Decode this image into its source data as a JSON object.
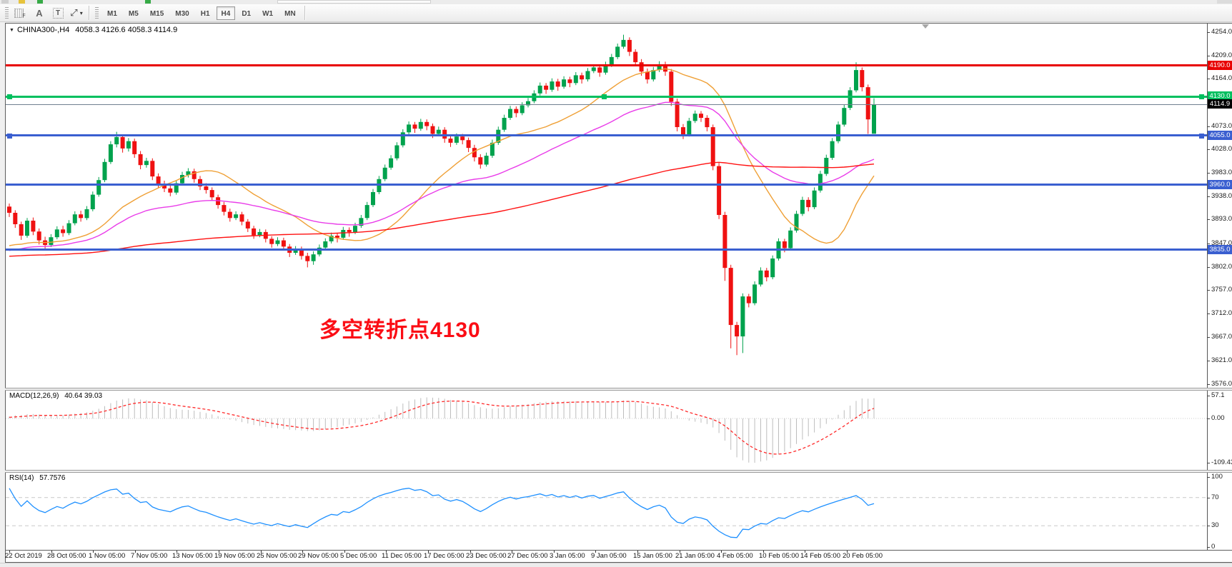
{
  "toolbar": {
    "icons": [
      {
        "name": "snap-grid-icon",
        "label": "F"
      },
      {
        "name": "text-label-icon",
        "label": "A"
      },
      {
        "name": "text-box-icon",
        "label": "T"
      },
      {
        "name": "draw-arrows-icon",
        "label": "⤢"
      },
      {
        "name": "dropdown-caret-icon",
        "label": "▾"
      }
    ],
    "timeframes": [
      {
        "label": "M1"
      },
      {
        "label": "M5"
      },
      {
        "label": "M15"
      },
      {
        "label": "M30"
      },
      {
        "label": "H1"
      },
      {
        "label": "H4"
      },
      {
        "label": "D1"
      },
      {
        "label": "W1"
      },
      {
        "label": "MN"
      }
    ],
    "active_timeframe": "H4"
  },
  "chart_header": {
    "collapse_icon": "▼",
    "symbol_period": "CHINA300-,H4",
    "ohlc": "4058.3 4126.6 4058.3 4114.9"
  },
  "annotation": {
    "text": "多空转折点4130",
    "color": "#fb0d15"
  },
  "price_axis": {
    "ticks": [
      {
        "label": "4254.0",
        "price": 4254
      },
      {
        "label": "4209.0",
        "price": 4209
      },
      {
        "label": "4164.0",
        "price": 4164
      },
      {
        "label": "4073.0",
        "price": 4073
      },
      {
        "label": "4028.0",
        "price": 4028
      },
      {
        "label": "3983.0",
        "price": 3983
      },
      {
        "label": "3938.0",
        "price": 3938
      },
      {
        "label": "3893.0",
        "price": 3893
      },
      {
        "label": "3847.0",
        "price": 3847
      },
      {
        "label": "3802.0",
        "price": 3802
      },
      {
        "label": "3757.0",
        "price": 3757
      },
      {
        "label": "3712.0",
        "price": 3712
      },
      {
        "label": "3667.0",
        "price": 3667
      },
      {
        "label": "3621.0",
        "price": 3621
      },
      {
        "label": "3576.0",
        "price": 3576
      }
    ],
    "badges": [
      {
        "label": "4190.0",
        "price": 4190,
        "bg": "#e80000"
      },
      {
        "label": "4130.0",
        "price": 4130,
        "bg": "#00bf5f"
      },
      {
        "label": "4114.9",
        "price": 4114.9,
        "bg": "#000000"
      },
      {
        "label": "4055.0",
        "price": 4055,
        "bg": "#3a5fd0"
      },
      {
        "label": "3960.0",
        "price": 3960,
        "bg": "#3a5fd0"
      },
      {
        "label": "3835.0",
        "price": 3835,
        "bg": "#3a5fd0"
      }
    ]
  },
  "hlines": [
    {
      "price": 4190,
      "color": "#e80000",
      "width": 3,
      "handles": []
    },
    {
      "price": 4130,
      "color": "#00bf5f",
      "width": 3,
      "handles": [
        "left",
        "mid",
        "right"
      ]
    },
    {
      "price": 4114.9,
      "color": "#708090",
      "width": 1,
      "handles": []
    },
    {
      "price": 4055,
      "color": "#3a5fd0",
      "width": 3,
      "handles": [
        "left",
        "right"
      ]
    },
    {
      "price": 3960,
      "color": "#3a5fd0",
      "width": 3,
      "handles": []
    },
    {
      "price": 3835,
      "color": "#3a5fd0",
      "width": 3,
      "handles": []
    }
  ],
  "time_axis": {
    "labels": [
      "22 Oct 2019",
      "28 Oct 05:00",
      "1 Nov 05:00",
      "7 Nov 05:00",
      "13 Nov 05:00",
      "19 Nov 05:00",
      "25 Nov 05:00",
      "29 Nov 05:00",
      "5 Dec 05:00",
      "11 Dec 05:00",
      "17 Dec 05:00",
      "23 Dec 05:00",
      "27 Dec 05:00",
      "3 Jan 05:00",
      "9 Jan 05:00",
      "15 Jan 05:00",
      "21 Jan 05:00",
      "4 Feb 05:00",
      "10 Feb 05:00",
      "14 Feb 05:00",
      "20 Feb 05:00"
    ]
  },
  "macd_panel": {
    "title": "MACD(12,26,9)",
    "values": "40.64 39.03",
    "ticks": [
      {
        "label": "57.1",
        "value": 57.1
      },
      {
        "label": "0.00",
        "value": 0
      },
      {
        "label": "-109.43",
        "value": -109.43
      }
    ]
  },
  "rsi_panel": {
    "title": "RSI(14)",
    "value": "57.7576",
    "ticks": [
      {
        "label": "100",
        "value": 100
      },
      {
        "label": "70",
        "value": 70
      },
      {
        "label": "30",
        "value": 30
      },
      {
        "label": "0",
        "value": 0
      }
    ],
    "levels": [
      70,
      30
    ]
  },
  "colors": {
    "candle_up": "#00a24d",
    "candle_down": "#ef1111",
    "ma_fast": "#efa036",
    "ma_mid": "#e93ce9",
    "ma_slow": "#ff1010",
    "macd_hist": "#bdbdbd",
    "macd_signal": "#ff2a2a",
    "rsi_line": "#1e90ff"
  },
  "chart_data": {
    "type": "candlestick",
    "symbol": "CHINA300-",
    "period": "H4",
    "ohlc_current": {
      "open": 4058.3,
      "high": 4126.6,
      "low": 4058.3,
      "close": 4114.9
    },
    "y_range": [
      3576,
      4254
    ],
    "horizontal_levels": [
      4190,
      4130,
      4055,
      3960,
      3835
    ],
    "overlays": [
      {
        "name": "MA-fast",
        "type": "SMA",
        "period": 20,
        "color": "#efa036"
      },
      {
        "name": "MA-mid",
        "type": "EMA",
        "period": 45,
        "color": "#e93ce9"
      },
      {
        "name": "MA-slow",
        "type": "SMA",
        "period": 120,
        "color": "#ff1010"
      }
    ],
    "indicators": [
      {
        "name": "MACD",
        "params": [
          12,
          26,
          9
        ],
        "current": [
          40.64,
          39.03
        ]
      },
      {
        "name": "RSI",
        "params": [
          14
        ],
        "current": 57.7576
      }
    ],
    "candles": [
      [
        3918,
        3924,
        3898,
        3906
      ],
      [
        3906,
        3911,
        3877,
        3884
      ],
      [
        3884,
        3889,
        3854,
        3862
      ],
      [
        3862,
        3896,
        3858,
        3891
      ],
      [
        3891,
        3897,
        3863,
        3870
      ],
      [
        3870,
        3876,
        3845,
        3853
      ],
      [
        3853,
        3860,
        3836,
        3844
      ],
      [
        3844,
        3865,
        3840,
        3859
      ],
      [
        3859,
        3880,
        3855,
        3874
      ],
      [
        3874,
        3881,
        3860,
        3867
      ],
      [
        3867,
        3892,
        3863,
        3886
      ],
      [
        3886,
        3909,
        3882,
        3903
      ],
      [
        3903,
        3910,
        3889,
        3896
      ],
      [
        3896,
        3919,
        3892,
        3913
      ],
      [
        3913,
        3947,
        3909,
        3941
      ],
      [
        3941,
        3975,
        3937,
        3969
      ],
      [
        3969,
        4010,
        3965,
        4004
      ],
      [
        4004,
        4044,
        4000,
        4038
      ],
      [
        4038,
        4062,
        4032,
        4052
      ],
      [
        4052,
        4057,
        4022,
        4030
      ],
      [
        4030,
        4050,
        4024,
        4044
      ],
      [
        4044,
        4049,
        4012,
        4019
      ],
      [
        4019,
        4025,
        3990,
        3998
      ],
      [
        3998,
        4012,
        3993,
        4006
      ],
      [
        4006,
        4011,
        3969,
        3976
      ],
      [
        3976,
        3982,
        3954,
        3961
      ],
      [
        3961,
        3968,
        3946,
        3953
      ],
      [
        3953,
        3959,
        3938,
        3945
      ],
      [
        3945,
        3969,
        3941,
        3963
      ],
      [
        3963,
        3985,
        3959,
        3979
      ],
      [
        3979,
        3992,
        3974,
        3986
      ],
      [
        3986,
        3991,
        3964,
        3971
      ],
      [
        3971,
        3977,
        3950,
        3957
      ],
      [
        3957,
        3963,
        3943,
        3950
      ],
      [
        3950,
        3955,
        3929,
        3936
      ],
      [
        3936,
        3941,
        3914,
        3921
      ],
      [
        3921,
        3927,
        3901,
        3908
      ],
      [
        3908,
        3914,
        3889,
        3896
      ],
      [
        3896,
        3909,
        3892,
        3903
      ],
      [
        3903,
        3908,
        3882,
        3889
      ],
      [
        3889,
        3894,
        3869,
        3876
      ],
      [
        3876,
        3881,
        3856,
        3863
      ],
      [
        3863,
        3875,
        3859,
        3869
      ],
      [
        3869,
        3874,
        3849,
        3856
      ],
      [
        3856,
        3861,
        3839,
        3846
      ],
      [
        3846,
        3859,
        3842,
        3853
      ],
      [
        3853,
        3858,
        3834,
        3841
      ],
      [
        3841,
        3846,
        3821,
        3829
      ],
      [
        3829,
        3842,
        3825,
        3836
      ],
      [
        3836,
        3841,
        3816,
        3823
      ],
      [
        3823,
        3829,
        3801,
        3813
      ],
      [
        3813,
        3832,
        3806,
        3826
      ],
      [
        3826,
        3845,
        3822,
        3839
      ],
      [
        3839,
        3857,
        3835,
        3851
      ],
      [
        3851,
        3868,
        3847,
        3862
      ],
      [
        3862,
        3867,
        3849,
        3858
      ],
      [
        3858,
        3879,
        3854,
        3873
      ],
      [
        3873,
        3878,
        3860,
        3869
      ],
      [
        3869,
        3887,
        3865,
        3881
      ],
      [
        3881,
        3902,
        3877,
        3896
      ],
      [
        3896,
        3927,
        3892,
        3921
      ],
      [
        3921,
        3952,
        3917,
        3946
      ],
      [
        3946,
        3977,
        3942,
        3971
      ],
      [
        3971,
        3999,
        3967,
        3993
      ],
      [
        3993,
        4017,
        3989,
        4011
      ],
      [
        4011,
        4042,
        4007,
        4036
      ],
      [
        4036,
        4067,
        4032,
        4061
      ],
      [
        4061,
        4082,
        4057,
        4076
      ],
      [
        4076,
        4081,
        4060,
        4068
      ],
      [
        4068,
        4087,
        4064,
        4081
      ],
      [
        4081,
        4086,
        4065,
        4073
      ],
      [
        4073,
        4078,
        4050,
        4058
      ],
      [
        4058,
        4072,
        4054,
        4066
      ],
      [
        4066,
        4071,
        4041,
        4049
      ],
      [
        4049,
        4055,
        4033,
        4041
      ],
      [
        4041,
        4059,
        4037,
        4053
      ],
      [
        4053,
        4058,
        4038,
        4046
      ],
      [
        4046,
        4051,
        4023,
        4031
      ],
      [
        4031,
        4037,
        4005,
        4013
      ],
      [
        4013,
        4019,
        3991,
        3999
      ],
      [
        3999,
        4022,
        3995,
        4016
      ],
      [
        4016,
        4047,
        4012,
        4041
      ],
      [
        4041,
        4072,
        4037,
        4066
      ],
      [
        4066,
        4095,
        4062,
        4089
      ],
      [
        4089,
        4112,
        4085,
        4106
      ],
      [
        4106,
        4111,
        4090,
        4098
      ],
      [
        4098,
        4119,
        4094,
        4113
      ],
      [
        4113,
        4127,
        4109,
        4121
      ],
      [
        4121,
        4142,
        4117,
        4136
      ],
      [
        4136,
        4157,
        4132,
        4151
      ],
      [
        4151,
        4156,
        4135,
        4143
      ],
      [
        4143,
        4165,
        4139,
        4159
      ],
      [
        4159,
        4164,
        4141,
        4149
      ],
      [
        4149,
        4169,
        4145,
        4163
      ],
      [
        4163,
        4168,
        4148,
        4156
      ],
      [
        4156,
        4177,
        4152,
        4171
      ],
      [
        4171,
        4176,
        4155,
        4163
      ],
      [
        4163,
        4185,
        4159,
        4179
      ],
      [
        4179,
        4192,
        4175,
        4186
      ],
      [
        4186,
        4191,
        4168,
        4176
      ],
      [
        4176,
        4197,
        4172,
        4191
      ],
      [
        4191,
        4212,
        4187,
        4206
      ],
      [
        4206,
        4232,
        4202,
        4226
      ],
      [
        4226,
        4249,
        4222,
        4239
      ],
      [
        4239,
        4244,
        4208,
        4216
      ],
      [
        4216,
        4221,
        4188,
        4196
      ],
      [
        4196,
        4202,
        4170,
        4178
      ],
      [
        4178,
        4184,
        4155,
        4163
      ],
      [
        4163,
        4187,
        4159,
        4181
      ],
      [
        4181,
        4198,
        4177,
        4192
      ],
      [
        4192,
        4197,
        4170,
        4178
      ],
      [
        4178,
        4183,
        4112,
        4120
      ],
      [
        4120,
        4126,
        4063,
        4071
      ],
      [
        4071,
        4077,
        4048,
        4057
      ],
      [
        4057,
        4089,
        4053,
        4083
      ],
      [
        4083,
        4103,
        4079,
        4097
      ],
      [
        4097,
        4102,
        4081,
        4089
      ],
      [
        4089,
        4094,
        4063,
        4071
      ],
      [
        4071,
        4076,
        3988,
        3996
      ],
      [
        3996,
        4002,
        3894,
        3902
      ],
      [
        3902,
        3908,
        3775,
        3800
      ],
      [
        3800,
        3806,
        3645,
        3690
      ],
      [
        3690,
        3696,
        3632,
        3668
      ],
      [
        3668,
        3751,
        3636,
        3745
      ],
      [
        3745,
        3750,
        3724,
        3732
      ],
      [
        3732,
        3774,
        3728,
        3768
      ],
      [
        3768,
        3801,
        3764,
        3795
      ],
      [
        3795,
        3800,
        3774,
        3782
      ],
      [
        3782,
        3824,
        3778,
        3818
      ],
      [
        3818,
        3857,
        3814,
        3851
      ],
      [
        3851,
        3856,
        3830,
        3838
      ],
      [
        3838,
        3878,
        3834,
        3872
      ],
      [
        3872,
        3910,
        3868,
        3904
      ],
      [
        3904,
        3937,
        3900,
        3931
      ],
      [
        3931,
        3936,
        3909,
        3917
      ],
      [
        3917,
        3955,
        3913,
        3949
      ],
      [
        3949,
        3987,
        3945,
        3981
      ],
      [
        3981,
        4018,
        3977,
        4012
      ],
      [
        4012,
        4050,
        4008,
        4044
      ],
      [
        4044,
        4082,
        4040,
        4076
      ],
      [
        4076,
        4114,
        4072,
        4108
      ],
      [
        4108,
        4148,
        4104,
        4142
      ],
      [
        4142,
        4196,
        4138,
        4181
      ],
      [
        4181,
        4186,
        4140,
        4148
      ],
      [
        4148,
        4153,
        4058,
        4086
      ],
      [
        4058.3,
        4126.6,
        4058.3,
        4114.9
      ]
    ]
  }
}
